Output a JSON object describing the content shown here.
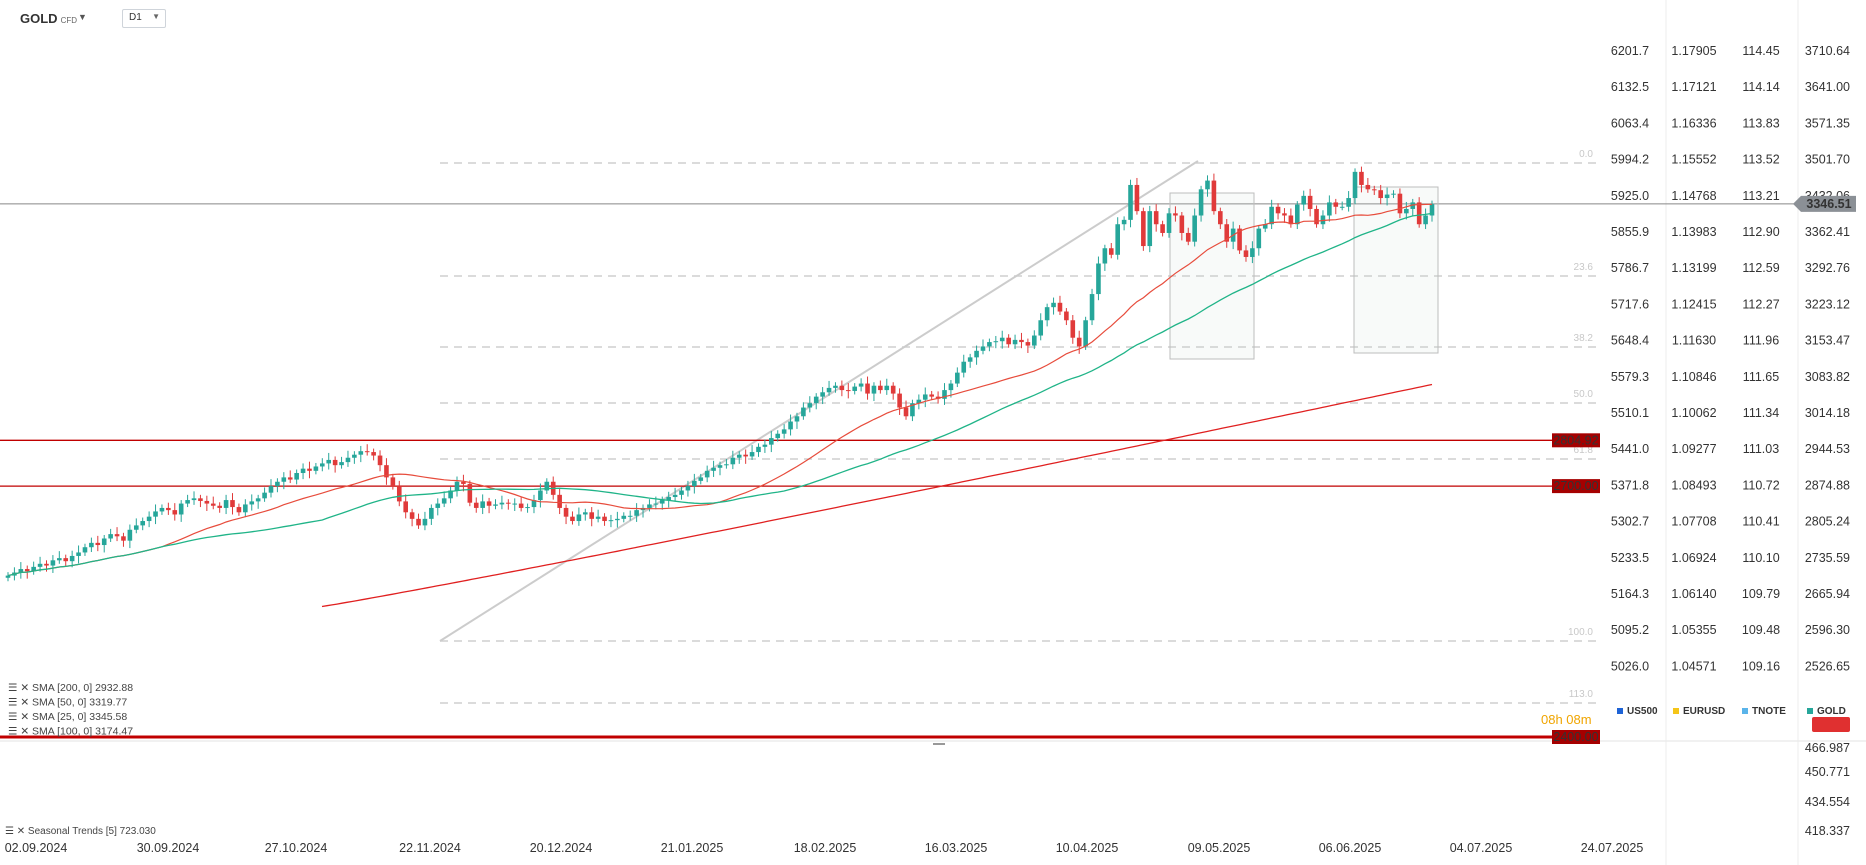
{
  "header": {
    "symbol": "GOLD",
    "symbol_sub": "CFD",
    "timeframe": "D1"
  },
  "right_axes": {
    "col1": [
      "6201.7",
      "6132.5",
      "6063.4",
      "5994.2",
      "5925.0",
      "5855.9",
      "5786.7",
      "5717.6",
      "5648.4",
      "5579.3",
      "5510.1",
      "5441.0",
      "5371.8",
      "5302.7",
      "5233.5",
      "5164.3",
      "5095.2",
      "5026.0"
    ],
    "col2": [
      "1.17905",
      "1.17121",
      "1.16336",
      "1.15552",
      "1.14768",
      "1.13983",
      "1.13199",
      "1.12415",
      "1.11630",
      "1.10846",
      "1.10062",
      "1.09277",
      "1.08493",
      "1.07708",
      "1.06924",
      "1.06140",
      "1.05355",
      "1.04571"
    ],
    "col3": [
      "114.45",
      "114.14",
      "113.83",
      "113.52",
      "113.21",
      "112.90",
      "112.59",
      "112.27",
      "111.96",
      "111.65",
      "111.34",
      "111.03",
      "110.72",
      "110.41",
      "110.10",
      "109.79",
      "109.48",
      "109.16"
    ],
    "col4": [
      "3710.64",
      "3641.00",
      "3571.35",
      "3501.70",
      "3432.06",
      "3362.41",
      "3292.76",
      "3223.12",
      "3153.47",
      "3083.82",
      "3014.18",
      "2944.53",
      "2874.88",
      "2805.24",
      "2735.59",
      "2665.94",
      "2596.30",
      "2526.65"
    ],
    "lower": [
      "466.987",
      "450.771",
      "434.554",
      "418.337"
    ],
    "current_price": "3346.51"
  },
  "x_axis": [
    "02.09.2024",
    "30.09.2024",
    "27.10.2024",
    "22.11.2024",
    "20.12.2024",
    "21.01.2025",
    "18.02.2025",
    "16.03.2025",
    "10.04.2025",
    "09.05.2025",
    "06.06.2025",
    "04.07.2025",
    "24.07.2025"
  ],
  "fib_labels": [
    "0.0",
    "23.6",
    "38.2",
    "50.0",
    "61.8",
    "100.0",
    "113.0"
  ],
  "level_labels": [
    "2804.92",
    "2700.00",
    "2400.00"
  ],
  "indicators": [
    "SMA [200, 0] 2932.88",
    "SMA [50, 0] 3319.77",
    "SMA [25, 0] 3345.58",
    "SMA [100, 0] 3174.47"
  ],
  "compare_legend": [
    {
      "label": "US500",
      "color": "#1e63d6"
    },
    {
      "label": "EURUSD",
      "color": "#f5c518"
    },
    {
      "label": "TNOTE",
      "color": "#5ab4ea"
    },
    {
      "label": "GOLD",
      "color": "#26a69a"
    }
  ],
  "timer": "08h 08m",
  "seasonal": "Seasonal Trends [5] 723.030",
  "colors": {
    "up": "#26a69a",
    "down": "#e03a3a",
    "sma25": "#e74c3c",
    "sma50": "#20b488",
    "sma200": "#e02020",
    "level": "#c00000"
  },
  "chart_data": {
    "type": "candlestick",
    "symbol": "GOLD",
    "timeframe": "D1",
    "x": [
      "02.09.2024",
      "30.09.2024",
      "27.10.2024",
      "22.11.2024",
      "20.12.2024",
      "21.01.2025",
      "18.02.2025",
      "16.03.2025",
      "10.04.2025",
      "09.05.2025",
      "06.06.2025",
      "04.07.2025",
      "24.07.2025"
    ],
    "ylim": [
      2480,
      3760
    ],
    "last_price": 3346.51,
    "horizontal_levels": [
      2804.92,
      2700.0,
      2400.0
    ],
    "series": [
      {
        "name": "SMA [200, 0]",
        "last": 2932.88
      },
      {
        "name": "SMA [50, 0]",
        "last": 3319.77
      },
      {
        "name": "SMA [25, 0]",
        "last": 3345.58
      },
      {
        "name": "SMA [100, 0]",
        "last": 3174.47
      }
    ],
    "closes": [
      2495,
      2502,
      2510,
      2505,
      2515,
      2522,
      2518,
      2530,
      2535,
      2528,
      2540,
      2548,
      2560,
      2570,
      2565,
      2580,
      2590,
      2585,
      2575,
      2600,
      2610,
      2620,
      2630,
      2642,
      2650,
      2645,
      2635,
      2660,
      2668,
      2672,
      2666,
      2660,
      2655,
      2650,
      2668,
      2652,
      2640,
      2658,
      2665,
      2672,
      2685,
      2700,
      2710,
      2720,
      2715,
      2730,
      2740,
      2735,
      2745,
      2752,
      2760,
      2748,
      2755,
      2765,
      2772,
      2780,
      2778,
      2770,
      2748,
      2720,
      2700,
      2665,
      2640,
      2625,
      2610,
      2625,
      2650,
      2660,
      2672,
      2690,
      2710,
      2705,
      2662,
      2650,
      2665,
      2655,
      2658,
      2662,
      2660,
      2660,
      2650,
      2652,
      2668,
      2690,
      2710,
      2680,
      2650,
      2630,
      2620,
      2635,
      2640,
      2625,
      2630,
      2620,
      2622,
      2625,
      2632,
      2632,
      2645,
      2650,
      2658,
      2660,
      2668,
      2675,
      2680,
      2690,
      2700,
      2712,
      2720,
      2735,
      2742,
      2748,
      2750,
      2765,
      2772,
      2768,
      2778,
      2790,
      2795,
      2810,
      2820,
      2830,
      2848,
      2860,
      2880,
      2890,
      2905,
      2915,
      2925,
      2930,
      2920,
      2918,
      2928,
      2935,
      2912,
      2930,
      2920,
      2930,
      2912,
      2880,
      2860,
      2890,
      2898,
      2910,
      2905,
      2900,
      2920,
      2935,
      2960,
      2985,
      2995,
      3010,
      3020,
      3030,
      3032,
      3040,
      3025,
      3035,
      3030,
      3022,
      3045,
      3080,
      3110,
      3120,
      3100,
      3080,
      3040,
      3020,
      3080,
      3140,
      3210,
      3245,
      3230,
      3300,
      3310,
      3390,
      3330,
      3250,
      3330,
      3300,
      3280,
      3325,
      3320,
      3280,
      3260,
      3320,
      3380,
      3400,
      3330,
      3300,
      3260,
      3290,
      3240,
      3225,
      3245,
      3290,
      3300,
      3340,
      3325,
      3320,
      3300,
      3345,
      3365,
      3335,
      3300,
      3320,
      3350,
      3340,
      3340,
      3360,
      3420,
      3390,
      3380,
      3378,
      3360,
      3368,
      3370,
      3325,
      3335,
      3350,
      3300,
      3320,
      3346
    ]
  }
}
